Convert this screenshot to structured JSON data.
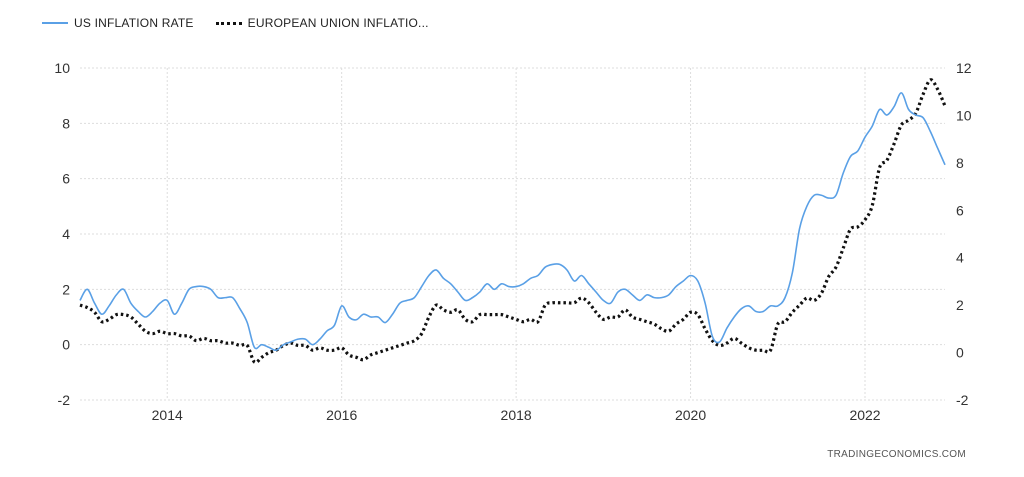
{
  "legend": {
    "us_label": "US INFLATION RATE",
    "eu_label": "EUROPEAN UNION INFLATIO..."
  },
  "footer": {
    "source": "TRADINGECONOMICS.COM"
  },
  "colors": {
    "us": "#5aa0e6",
    "eu": "#111111",
    "grid": "#dddddd"
  },
  "chart_data": {
    "type": "line",
    "x_ticks": [
      "2014",
      "2016",
      "2018",
      "2020",
      "2022"
    ],
    "y_left_ticks": [
      "10",
      "8",
      "6",
      "4",
      "2",
      "0",
      "-2"
    ],
    "y_right_ticks": [
      "12",
      "10",
      "8",
      "6",
      "4",
      "2",
      "0",
      "-2"
    ],
    "y_left_range": [
      -2,
      10
    ],
    "y_right_range": [
      -2,
      12
    ],
    "x_range": [
      2013.0,
      2022.917
    ],
    "grid": true,
    "legend_position": "top-left",
    "series": [
      {
        "name": "US INFLATION RATE",
        "axis": "left",
        "style": "solid",
        "x": [
          2013.0,
          2013.083,
          2013.167,
          2013.25,
          2013.333,
          2013.417,
          2013.5,
          2013.583,
          2013.667,
          2013.75,
          2013.833,
          2013.917,
          2014.0,
          2014.083,
          2014.167,
          2014.25,
          2014.333,
          2014.417,
          2014.5,
          2014.583,
          2014.667,
          2014.75,
          2014.833,
          2014.917,
          2015.0,
          2015.083,
          2015.167,
          2015.25,
          2015.333,
          2015.417,
          2015.5,
          2015.583,
          2015.667,
          2015.75,
          2015.833,
          2015.917,
          2016.0,
          2016.083,
          2016.167,
          2016.25,
          2016.333,
          2016.417,
          2016.5,
          2016.583,
          2016.667,
          2016.75,
          2016.833,
          2016.917,
          2017.0,
          2017.083,
          2017.167,
          2017.25,
          2017.333,
          2017.417,
          2017.5,
          2017.583,
          2017.667,
          2017.75,
          2017.833,
          2017.917,
          2018.0,
          2018.083,
          2018.167,
          2018.25,
          2018.333,
          2018.417,
          2018.5,
          2018.583,
          2018.667,
          2018.75,
          2018.833,
          2018.917,
          2019.0,
          2019.083,
          2019.167,
          2019.25,
          2019.333,
          2019.417,
          2019.5,
          2019.583,
          2019.667,
          2019.75,
          2019.833,
          2019.917,
          2020.0,
          2020.083,
          2020.167,
          2020.25,
          2020.333,
          2020.417,
          2020.5,
          2020.583,
          2020.667,
          2020.75,
          2020.833,
          2020.917,
          2021.0,
          2021.083,
          2021.167,
          2021.25,
          2021.333,
          2021.417,
          2021.5,
          2021.583,
          2021.667,
          2021.75,
          2021.833,
          2021.917,
          2022.0,
          2022.083,
          2022.167,
          2022.25,
          2022.333,
          2022.417,
          2022.5,
          2022.583,
          2022.667,
          2022.75,
          2022.833,
          2022.917
        ],
        "values": [
          1.6,
          2.0,
          1.5,
          1.1,
          1.4,
          1.8,
          2.0,
          1.5,
          1.2,
          1.0,
          1.2,
          1.5,
          1.6,
          1.1,
          1.5,
          2.0,
          2.1,
          2.1,
          2.0,
          1.7,
          1.7,
          1.7,
          1.3,
          0.8,
          -0.1,
          0.0,
          -0.1,
          -0.2,
          0.0,
          0.1,
          0.2,
          0.2,
          0.0,
          0.2,
          0.5,
          0.7,
          1.4,
          1.0,
          0.9,
          1.1,
          1.0,
          1.0,
          0.8,
          1.1,
          1.5,
          1.6,
          1.7,
          2.1,
          2.5,
          2.7,
          2.4,
          2.2,
          1.9,
          1.6,
          1.7,
          1.9,
          2.2,
          2.0,
          2.2,
          2.1,
          2.1,
          2.2,
          2.4,
          2.5,
          2.8,
          2.9,
          2.9,
          2.7,
          2.3,
          2.5,
          2.2,
          1.9,
          1.6,
          1.5,
          1.9,
          2.0,
          1.8,
          1.6,
          1.8,
          1.7,
          1.7,
          1.8,
          2.1,
          2.3,
          2.5,
          2.3,
          1.5,
          0.3,
          0.1,
          0.6,
          1.0,
          1.3,
          1.4,
          1.2,
          1.2,
          1.4,
          1.4,
          1.7,
          2.6,
          4.2,
          5.0,
          5.4,
          5.4,
          5.3,
          5.4,
          6.2,
          6.8,
          7.0,
          7.5,
          7.9,
          8.5,
          8.3,
          8.6,
          9.1,
          8.5,
          8.3,
          8.2,
          7.7,
          7.1,
          6.5
        ]
      },
      {
        "name": "EUROPEAN UNION INFLATIO...",
        "axis": "right",
        "style": "dotted",
        "x": [
          2013.0,
          2013.083,
          2013.167,
          2013.25,
          2013.333,
          2013.417,
          2013.5,
          2013.583,
          2013.667,
          2013.75,
          2013.833,
          2013.917,
          2014.0,
          2014.083,
          2014.167,
          2014.25,
          2014.333,
          2014.417,
          2014.5,
          2014.583,
          2014.667,
          2014.75,
          2014.833,
          2014.917,
          2015.0,
          2015.083,
          2015.167,
          2015.25,
          2015.333,
          2015.417,
          2015.5,
          2015.583,
          2015.667,
          2015.75,
          2015.833,
          2015.917,
          2016.0,
          2016.083,
          2016.167,
          2016.25,
          2016.333,
          2016.417,
          2016.5,
          2016.583,
          2016.667,
          2016.75,
          2016.833,
          2016.917,
          2017.0,
          2017.083,
          2017.167,
          2017.25,
          2017.333,
          2017.417,
          2017.5,
          2017.583,
          2017.667,
          2017.75,
          2017.833,
          2017.917,
          2018.0,
          2018.083,
          2018.167,
          2018.25,
          2018.333,
          2018.417,
          2018.5,
          2018.583,
          2018.667,
          2018.75,
          2018.833,
          2018.917,
          2019.0,
          2019.083,
          2019.167,
          2019.25,
          2019.333,
          2019.417,
          2019.5,
          2019.583,
          2019.667,
          2019.75,
          2019.833,
          2019.917,
          2020.0,
          2020.083,
          2020.167,
          2020.25,
          2020.333,
          2020.417,
          2020.5,
          2020.583,
          2020.667,
          2020.75,
          2020.833,
          2020.917,
          2021.0,
          2021.083,
          2021.167,
          2021.25,
          2021.333,
          2021.417,
          2021.5,
          2021.583,
          2021.667,
          2021.75,
          2021.833,
          2021.917,
          2022.0,
          2022.083,
          2022.167,
          2022.25,
          2022.333,
          2022.417,
          2022.5,
          2022.583,
          2022.667,
          2022.75,
          2022.833,
          2022.917
        ],
        "values": [
          2.0,
          1.9,
          1.7,
          1.3,
          1.4,
          1.6,
          1.6,
          1.5,
          1.2,
          0.9,
          0.8,
          0.9,
          0.8,
          0.8,
          0.7,
          0.7,
          0.5,
          0.6,
          0.5,
          0.5,
          0.4,
          0.4,
          0.3,
          0.3,
          -0.4,
          -0.2,
          0.0,
          0.1,
          0.3,
          0.4,
          0.3,
          0.3,
          0.1,
          0.2,
          0.1,
          0.1,
          0.2,
          -0.1,
          -0.2,
          -0.3,
          -0.1,
          0.0,
          0.1,
          0.2,
          0.3,
          0.4,
          0.5,
          0.8,
          1.5,
          2.0,
          1.8,
          1.7,
          1.8,
          1.4,
          1.3,
          1.6,
          1.6,
          1.6,
          1.6,
          1.5,
          1.4,
          1.3,
          1.4,
          1.3,
          2.0,
          2.1,
          2.1,
          2.1,
          2.1,
          2.3,
          2.1,
          1.7,
          1.4,
          1.5,
          1.5,
          1.8,
          1.5,
          1.4,
          1.3,
          1.2,
          1.0,
          0.9,
          1.2,
          1.4,
          1.7,
          1.6,
          1.0,
          0.5,
          0.3,
          0.4,
          0.6,
          0.4,
          0.2,
          0.1,
          0.1,
          0.1,
          1.2,
          1.3,
          1.7,
          2.0,
          2.3,
          2.2,
          2.5,
          3.2,
          3.6,
          4.4,
          5.2,
          5.3,
          5.6,
          6.2,
          7.8,
          8.1,
          8.8,
          9.6,
          9.8,
          10.1,
          10.9,
          11.5,
          11.1,
          10.4
        ]
      }
    ]
  }
}
